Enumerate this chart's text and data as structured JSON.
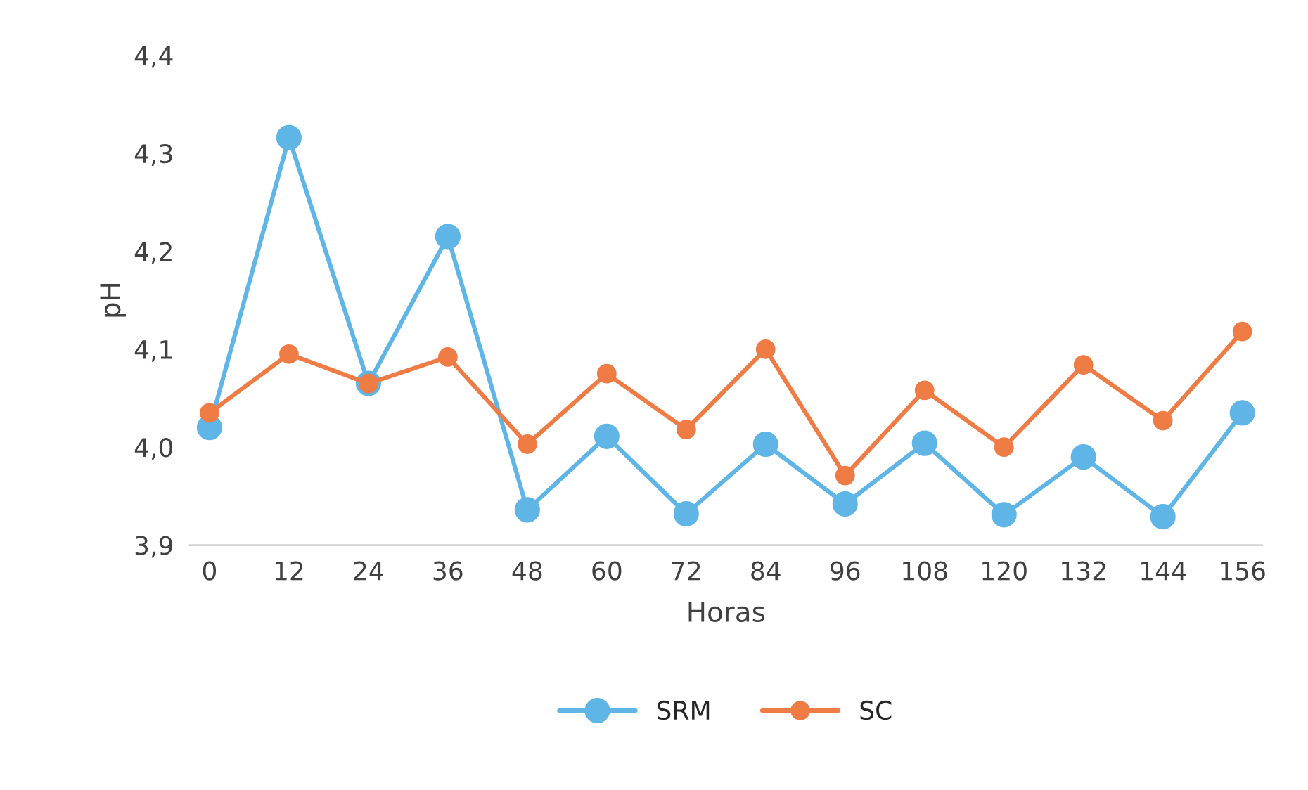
{
  "chart_data": {
    "type": "line",
    "xlabel": "Horas",
    "ylabel": "pH",
    "categories": [
      "0",
      "12",
      "24",
      "36",
      "48",
      "60",
      "72",
      "84",
      "96",
      "108",
      "120",
      "132",
      "144",
      "156"
    ],
    "series": [
      {
        "name": "SRM",
        "color": "#5fb5e6",
        "values": [
          4.02,
          4.316,
          4.065,
          4.215,
          3.936,
          4.011,
          3.932,
          4.003,
          3.942,
          4.004,
          3.931,
          3.99,
          3.929,
          4.035
        ]
      },
      {
        "name": "SC",
        "color": "#ef7b45",
        "values": [
          4.035,
          4.095,
          4.065,
          4.092,
          4.003,
          4.075,
          4.018,
          4.1,
          3.971,
          4.058,
          4.0,
          4.084,
          4.027,
          4.118
        ]
      }
    ],
    "ylim": [
      3.9,
      4.4
    ],
    "yticks": [
      {
        "value": 3.9,
        "label": "3,9"
      },
      {
        "value": 4.0,
        "label": "4,0"
      },
      {
        "value": 4.1,
        "label": "4,1"
      },
      {
        "value": 4.2,
        "label": "4,2"
      },
      {
        "value": 4.3,
        "label": "4,3"
      },
      {
        "value": 4.4,
        "label": "4,4"
      }
    ],
    "grid": false,
    "legend": "bottom",
    "marker": "circle",
    "line_style": "solid"
  }
}
